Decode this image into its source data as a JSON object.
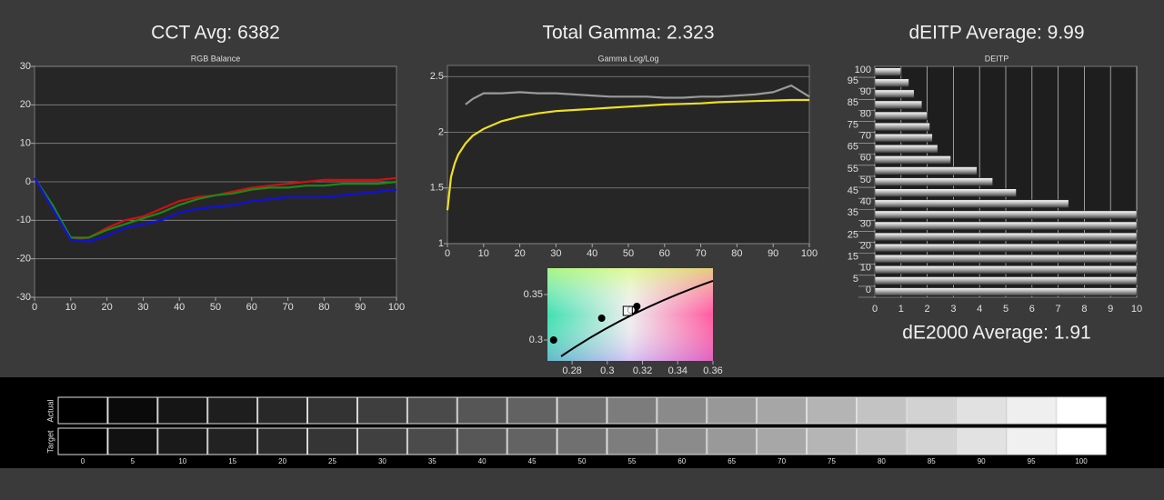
{
  "chart_data": [
    {
      "type": "line",
      "title": "CCT Avg: 6382",
      "subtitle": "RGB Balance",
      "x": [
        0,
        5,
        10,
        15,
        20,
        25,
        30,
        35,
        40,
        45,
        50,
        55,
        60,
        65,
        70,
        75,
        80,
        85,
        90,
        95,
        100
      ],
      "series": [
        {
          "color": "#d01010",
          "values": [
            1,
            -7,
            -15,
            -14.5,
            -12,
            -10,
            -9,
            -7,
            -5,
            -4,
            -3.5,
            -2.5,
            -1.5,
            -1,
            -0.5,
            0,
            0.5,
            0.5,
            0.5,
            0.5,
            1
          ]
        },
        {
          "color": "#1a8a1a",
          "values": [
            1,
            -6,
            -14.5,
            -14.5,
            -12.5,
            -11,
            -9.5,
            -8,
            -6,
            -4.5,
            -3.5,
            -3,
            -2,
            -1.5,
            -1.5,
            -1,
            -1,
            -0.5,
            -0.5,
            -0.5,
            0
          ]
        },
        {
          "color": "#1010e0",
          "values": [
            1,
            -7,
            -15,
            -15.5,
            -14,
            -12,
            -11,
            -10,
            -8,
            -7,
            -6.5,
            -6,
            -5,
            -4.5,
            -4,
            -4,
            -4,
            -3.5,
            -3,
            -2.5,
            -2
          ]
        }
      ],
      "xlim": [
        0,
        100
      ],
      "xticks": [
        0,
        10,
        20,
        30,
        40,
        50,
        60,
        70,
        80,
        90,
        100
      ],
      "ylim": [
        -30,
        30
      ],
      "yticks": [
        -30,
        -20,
        -10,
        0,
        10,
        20,
        30
      ],
      "grid": true
    },
    {
      "type": "line",
      "title": "Total Gamma: 2.323",
      "subtitle": "Gamma Log/Log",
      "x": [
        0,
        1,
        2,
        3,
        5,
        7,
        10,
        15,
        20,
        25,
        30,
        35,
        40,
        45,
        50,
        55,
        60,
        65,
        70,
        75,
        80,
        85,
        90,
        95,
        100
      ],
      "series": [
        {
          "color": "#9a9a9a",
          "values": [
            null,
            null,
            null,
            null,
            2.25,
            2.3,
            2.35,
            2.35,
            2.36,
            2.35,
            2.35,
            2.34,
            2.33,
            2.32,
            2.32,
            2.32,
            2.31,
            2.31,
            2.32,
            2.32,
            2.33,
            2.34,
            2.36,
            2.42,
            2.32
          ]
        },
        {
          "color": "#f0e020",
          "values": [
            1.3,
            1.6,
            1.72,
            1.8,
            1.9,
            1.97,
            2.03,
            2.1,
            2.14,
            2.17,
            2.19,
            2.2,
            2.21,
            2.22,
            2.23,
            2.24,
            2.25,
            2.255,
            2.26,
            2.27,
            2.275,
            2.28,
            2.285,
            2.29,
            2.29
          ]
        }
      ],
      "xlim": [
        0,
        100
      ],
      "xticks": [
        0,
        10,
        20,
        30,
        40,
        50,
        60,
        70,
        80,
        90,
        100
      ],
      "ylim": [
        1,
        2.6
      ],
      "yticks": [
        1,
        1.5,
        2,
        2.5
      ],
      "grid": true
    },
    {
      "type": "scatter",
      "series": [
        {
          "color": "#000000",
          "marker": "circle",
          "x": [
            0.2695,
            0.2968,
            0.3158,
            0.3168
          ],
          "values": [
            0.3,
            0.324,
            0.334,
            0.337
          ]
        },
        {
          "color": "#ffffff",
          "marker": "circle",
          "x": [
            0.3137
          ],
          "values": [
            0.333
          ]
        },
        {
          "color": "#ffffff",
          "marker": "square",
          "x": [
            0.3116
          ],
          "values": [
            0.332
          ]
        }
      ],
      "xlim": [
        0.266,
        0.36
      ],
      "xticks": [
        0.28,
        0.3,
        0.32,
        0.34,
        0.36
      ],
      "ylim": [
        0.277,
        0.379
      ],
      "yticks": [
        0.3,
        0.35
      ]
    },
    {
      "type": "hbar",
      "title": "dEITP Average: 9.99",
      "subtitle": "DEITP",
      "annotation": "dE2000 Average: 1.91",
      "categories": [
        "0",
        "5",
        "10",
        "15",
        "20",
        "25",
        "30",
        "35",
        "40",
        "45",
        "50",
        "55",
        "60",
        "65",
        "70",
        "75",
        "80",
        "85",
        "90",
        "95",
        "100"
      ],
      "values": [
        10,
        10,
        10,
        10,
        10,
        10,
        10,
        10,
        7.4,
        5.4,
        4.5,
        3.9,
        2.9,
        2.4,
        2.2,
        2.1,
        2,
        1.8,
        1.5,
        1.3,
        1
      ],
      "color": "#b0b0b0",
      "xlim": [
        0,
        10
      ],
      "xticks": [
        0,
        1,
        2,
        3,
        4,
        5,
        6,
        7,
        8,
        9,
        10
      ],
      "grid": true
    }
  ],
  "swatches": {
    "row_labels": [
      "Actual",
      "Target"
    ],
    "levels": [
      "0",
      "5",
      "10",
      "15",
      "20",
      "25",
      "30",
      "35",
      "40",
      "45",
      "50",
      "55",
      "60",
      "65",
      "70",
      "75",
      "80",
      "85",
      "90",
      "95",
      "100"
    ],
    "actual": [
      "#000000",
      "#0a0a0a",
      "#151515",
      "#1e1e1e",
      "#282828",
      "#333333",
      "#3e3e3e",
      "#4a4a4a",
      "#565656",
      "#626262",
      "#6f6f6f",
      "#7c7c7c",
      "#8a8a8a",
      "#989898",
      "#a6a6a6",
      "#b4b4b4",
      "#c3c3c3",
      "#d2d2d2",
      "#e1e1e1",
      "#efefef",
      "#ffffff"
    ],
    "target": [
      "#000000",
      "#111111",
      "#1a1a1a",
      "#222222",
      "#2b2b2b",
      "#353535",
      "#404040",
      "#4b4b4b",
      "#575757",
      "#636363",
      "#707070",
      "#7d7d7d",
      "#8b8b8b",
      "#999999",
      "#a7a7a7",
      "#b5b5b5",
      "#c4c4c4",
      "#d3d3d3",
      "#e2e2e2",
      "#f0f0f0",
      "#ffffff"
    ]
  }
}
